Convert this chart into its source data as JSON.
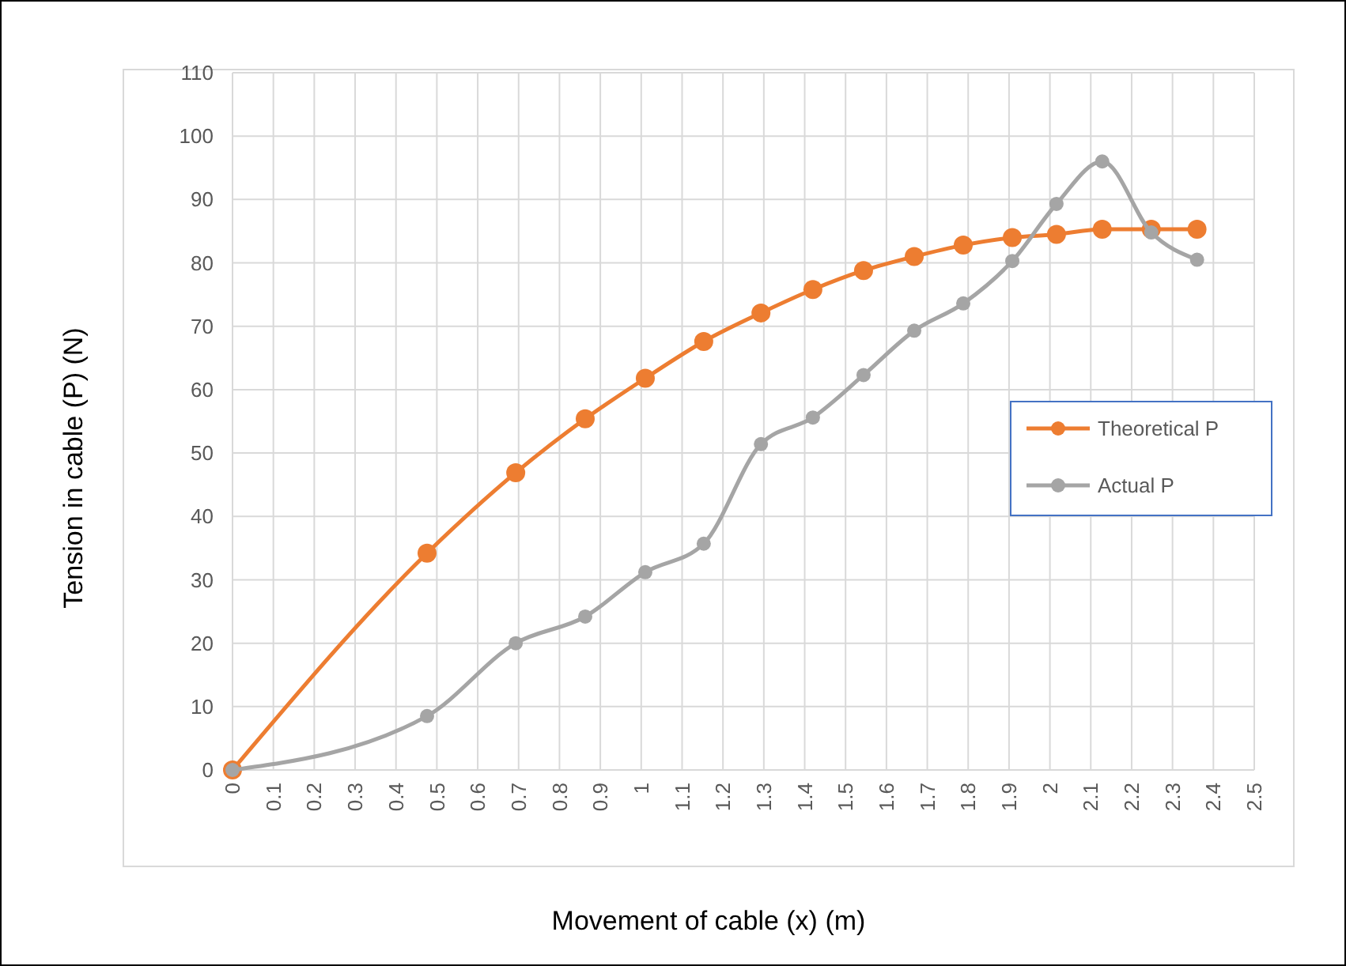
{
  "chart_data": {
    "type": "line",
    "xlabel": "Movement of cable (x) (m)",
    "ylabel": "Tension in cable (P) (N)",
    "xlim": [
      0,
      2.5
    ],
    "xticks": [
      0,
      0.1,
      0.2,
      0.3,
      0.4,
      0.5,
      0.6,
      0.7,
      0.8,
      0.9,
      1,
      1.1,
      1.2,
      1.3,
      1.4,
      1.5,
      1.6,
      1.7,
      1.8,
      1.9,
      2,
      2.1,
      2.2,
      2.3,
      2.4,
      2.5
    ],
    "ylim": [
      0,
      110
    ],
    "yticks": [
      0,
      10,
      20,
      30,
      40,
      50,
      60,
      70,
      80,
      90,
      100,
      110
    ],
    "grid": true,
    "legend": "right",
    "marker": "circle",
    "line_style": "solid",
    "series": [
      {
        "name": "Theoretical P",
        "color": "#ed7d31",
        "x": [
          0,
          0.476,
          0.693,
          0.863,
          1.01,
          1.153,
          1.293,
          1.42,
          1.544,
          1.668,
          1.788,
          1.908,
          2.016,
          2.128,
          2.248,
          2.36
        ],
        "values": [
          0,
          34.2,
          46.9,
          55.4,
          61.8,
          67.6,
          72.1,
          75.8,
          78.8,
          81,
          82.8,
          84,
          84.5,
          85.3,
          85.3,
          85.3
        ]
      },
      {
        "name": "Actual P",
        "color": "#a5a5a5",
        "x": [
          0,
          0.476,
          0.693,
          0.863,
          1.01,
          1.153,
          1.293,
          1.42,
          1.544,
          1.668,
          1.788,
          1.908,
          2.016,
          2.128,
          2.248,
          2.36
        ],
        "values": [
          0,
          8.5,
          20,
          24.2,
          31.2,
          35.7,
          51.4,
          55.6,
          62.3,
          69.3,
          73.6,
          80.3,
          89.3,
          96,
          84.8,
          80.5
        ]
      }
    ]
  }
}
